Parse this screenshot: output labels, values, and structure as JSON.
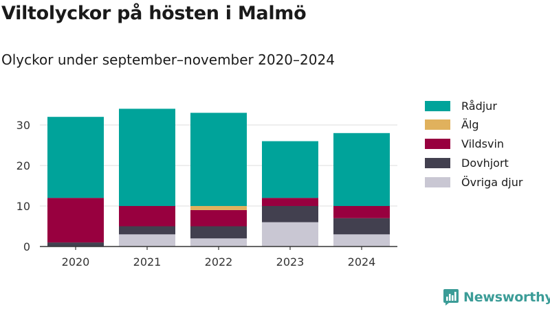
{
  "title": "Viltolyckor på hösten i Malmö",
  "subtitle": "Olyckor under september–november 2020–2024",
  "logo_text": "Newsworthy",
  "chart_data": {
    "type": "bar",
    "stacked": true,
    "categories": [
      "2020",
      "2021",
      "2022",
      "2023",
      "2024"
    ],
    "ylim": [
      0,
      35
    ],
    "yticks": [
      0,
      10,
      20,
      30
    ],
    "grid": true,
    "legend_position": "right",
    "stack_order": [
      "Övriga djur",
      "Dovhjort",
      "Vildsvin",
      "Älg",
      "Rådjur"
    ],
    "series": [
      {
        "name": "Rådjur",
        "color": "#00a39a",
        "values": [
          20,
          24,
          23,
          14,
          18
        ]
      },
      {
        "name": "Älg",
        "color": "#e0b15d",
        "values": [
          0,
          0,
          1,
          0,
          0
        ]
      },
      {
        "name": "Vildsvin",
        "color": "#98003f",
        "values": [
          11,
          5,
          4,
          2,
          3
        ]
      },
      {
        "name": "Dovhjort",
        "color": "#42404f",
        "values": [
          1,
          2,
          3,
          4,
          4
        ]
      },
      {
        "name": "Övriga djur",
        "color": "#c9c7d3",
        "values": [
          0,
          3,
          2,
          6,
          3
        ]
      }
    ]
  }
}
